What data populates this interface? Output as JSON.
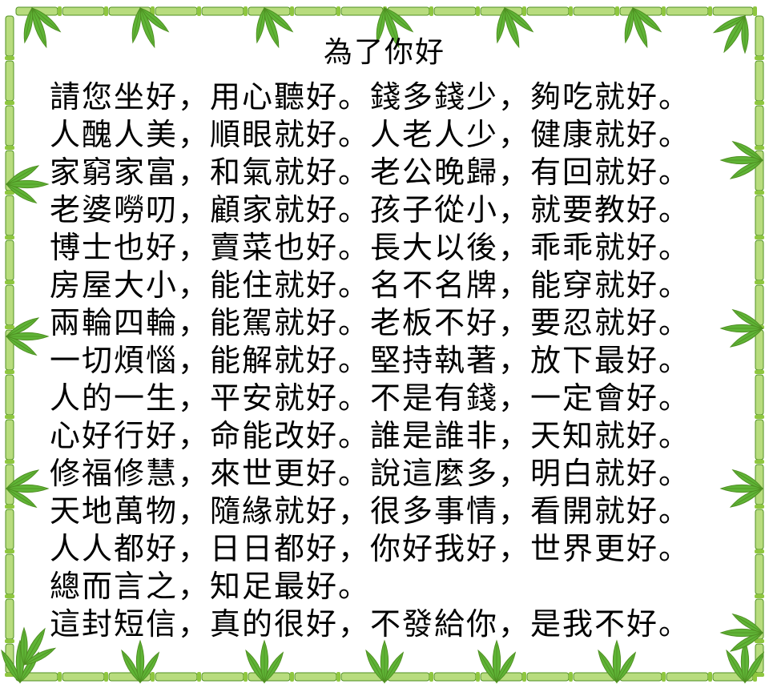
{
  "title": "為了你好",
  "lines": [
    [
      "請您坐好，",
      "用心聽好。",
      "錢多錢少，",
      "夠吃就好。"
    ],
    [
      "人醜人美，",
      "順眼就好。",
      "人老人少，",
      "健康就好。"
    ],
    [
      "家窮家富，",
      "和氣就好。",
      "老公晚歸，",
      "有回就好。"
    ],
    [
      "老婆嘮叨，",
      "顧家就好。",
      "孩子從小，",
      "就要教好。"
    ],
    [
      "博士也好，",
      "賣菜也好。",
      "長大以後，",
      "乖乖就好。"
    ],
    [
      "房屋大小，",
      "能住就好。",
      "名不名牌，",
      "能穿就好。"
    ],
    [
      "兩輪四輪，",
      "能駕就好。",
      "老板不好，",
      "要忍就好。"
    ],
    [
      "一切煩惱，",
      "能解就好。",
      "堅持執著，",
      "放下最好。"
    ],
    [
      "人的一生，",
      "平安就好。",
      "不是有錢，",
      "一定會好。"
    ],
    [
      "心好行好，",
      "命能改好。",
      "誰是誰非，",
      "天知就好。"
    ],
    [
      "修福修慧，",
      "來世更好。",
      "說這麼多，",
      "明白就好。"
    ],
    [
      "天地萬物，",
      "隨緣就好，",
      "很多事情，",
      "看開就好。"
    ],
    [
      "人人都好，",
      "日日都好，",
      "你好我好，",
      "世界更好。"
    ],
    [
      "總而言之，",
      "知足最好。",
      "",
      ""
    ],
    [
      "這封短信，",
      "真的很好，",
      "不發給你，",
      "是我不好。"
    ]
  ],
  "colors": {
    "bamboo_light": "#b8dc7e",
    "bamboo_mid": "#8ec63f",
    "bamboo_dark": "#4f8f22",
    "leaf": "#5fb436",
    "text": "#000000"
  }
}
